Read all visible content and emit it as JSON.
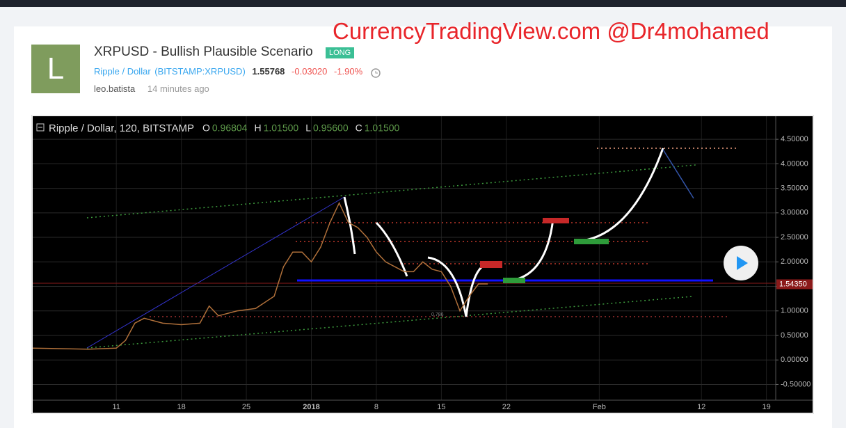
{
  "header": {
    "watermark": "CurrencyTradingView.com @Dr4mohamed",
    "avatar_letter": "L",
    "title": "XRPUSD - Bullish Plausible Scenario",
    "badge": "LONG",
    "symbol_name": "Ripple / Dollar",
    "exchange_symbol": "(BITSTAMP:XRPUSD)",
    "last_price": "1.55768",
    "change": "-0.03020",
    "change_percent": "-1.90%",
    "author": "leo.batista",
    "time_ago": "14 minutes ago"
  },
  "chart_data": {
    "type": "line",
    "title": "Ripple / Dollar, 120, BITSTAMP",
    "ohlc": [
      {
        "label": "O",
        "value": "0.96804"
      },
      {
        "label": "H",
        "value": "1.01500"
      },
      {
        "label": "L",
        "value": "0.95600"
      },
      {
        "label": "C",
        "value": "1.01500"
      }
    ],
    "annotations": [
      "0.786"
    ],
    "x": [
      "2017-12-02",
      "2017-12-05",
      "2017-12-08",
      "2017-12-11",
      "2017-12-12",
      "2017-12-13",
      "2017-12-14",
      "2017-12-16",
      "2017-12-18",
      "2017-12-20",
      "2017-12-21",
      "2017-12-22",
      "2017-12-24",
      "2017-12-26",
      "2017-12-28",
      "2017-12-29",
      "2017-12-30",
      "2017-12-31",
      "2018-01-01",
      "2018-01-02",
      "2018-01-03",
      "2018-01-04",
      "2018-01-05",
      "2018-01-06",
      "2018-01-07",
      "2018-01-08",
      "2018-01-09",
      "2018-01-10",
      "2018-01-11",
      "2018-01-12",
      "2018-01-13",
      "2018-01-14",
      "2018-01-15",
      "2018-01-16",
      "2018-01-17",
      "2018-01-18",
      "2018-01-19",
      "2018-01-20"
    ],
    "series": [
      {
        "color": "#b0703a",
        "values": [
          0.24,
          0.23,
          0.22,
          0.24,
          0.4,
          0.75,
          0.85,
          0.75,
          0.72,
          0.75,
          1.1,
          0.9,
          1.0,
          1.05,
          1.3,
          1.9,
          2.2,
          2.2,
          2.0,
          2.3,
          2.8,
          3.2,
          2.8,
          2.7,
          2.5,
          2.2,
          2.0,
          1.9,
          1.8,
          1.8,
          2.0,
          1.85,
          1.8,
          1.5,
          1.0,
          1.3,
          1.55,
          1.55
        ]
      }
    ],
    "xlim": [
      "2017-12-02",
      "2018-02-20"
    ],
    "xticks": [
      {
        "value": "2017-12-11",
        "label": "11"
      },
      {
        "value": "2017-12-18",
        "label": "18"
      },
      {
        "value": "2017-12-25",
        "label": "25"
      },
      {
        "value": "2018-01-01",
        "label": "2018"
      },
      {
        "value": "2018-01-08",
        "label": "8"
      },
      {
        "value": "2018-01-15",
        "label": "15"
      },
      {
        "value": "2018-01-22",
        "label": "22"
      },
      {
        "value": "2018-02-01",
        "label": "Feb"
      },
      {
        "value": "2018-02-12",
        "label": "12"
      },
      {
        "value": "2018-02-19",
        "label": "19"
      }
    ],
    "ylim": [
      -0.82,
      4.97
    ],
    "yticks": [
      {
        "value": 4.5,
        "label": "4.50000"
      },
      {
        "value": 4,
        "label": "4.00000"
      },
      {
        "value": 3.5,
        "label": "3.50000"
      },
      {
        "value": 3,
        "label": "3.00000"
      },
      {
        "value": 2.5,
        "label": "2.50000"
      },
      {
        "value": 2,
        "label": "2.00000"
      },
      {
        "value": 1.5,
        "label": "1.50000"
      },
      {
        "value": 1,
        "label": "1.00000"
      },
      {
        "value": 0.5,
        "label": "0.50000"
      },
      {
        "value": 0,
        "label": "0.00000"
      },
      {
        "value": -0.5,
        "label": "-0.50000"
      }
    ],
    "current_price": {
      "value": 1.5435,
      "label": "1.54350"
    },
    "grid": true
  }
}
